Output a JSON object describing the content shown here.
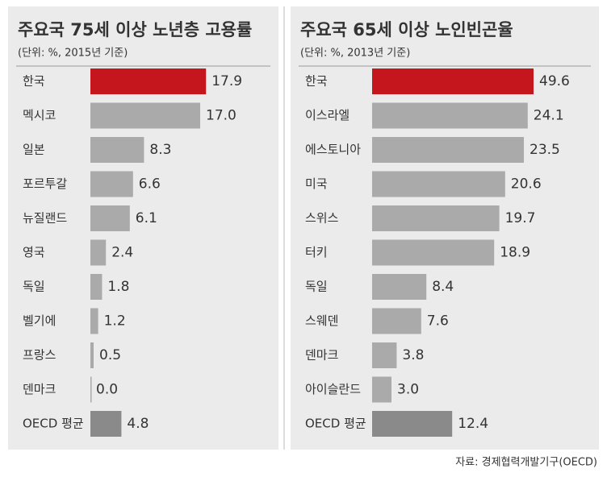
{
  "chart_data": [
    {
      "type": "barh",
      "title": "주요국 75세 이상 노년층 고용률",
      "subtitle": "(단위: %, 2015년 기준)",
      "categories": [
        "한국",
        "멕시코",
        "일본",
        "포르투갈",
        "뉴질랜드",
        "영국",
        "독일",
        "벨기에",
        "프랑스",
        "덴마크",
        "OECD 평균"
      ],
      "values": [
        17.9,
        17.0,
        8.3,
        6.6,
        6.1,
        2.4,
        1.8,
        1.2,
        0.5,
        0.0,
        4.8
      ],
      "value_labels": [
        "17.9",
        "17.0",
        "8.3",
        "6.6",
        "6.1",
        "2.4",
        "1.8",
        "1.2",
        "0.5",
        "0.0",
        "4.8"
      ],
      "colors": [
        "#c4161c",
        "#aaaaaa",
        "#aaaaaa",
        "#aaaaaa",
        "#aaaaaa",
        "#aaaaaa",
        "#aaaaaa",
        "#aaaaaa",
        "#aaaaaa",
        "#aaaaaa",
        "#8a8a8a"
      ],
      "value_label_colors": [
        "#c4161c",
        "#333333",
        "#333333",
        "#333333",
        "#333333",
        "#333333",
        "#333333",
        "#333333",
        "#333333",
        "#333333",
        "#333333"
      ],
      "xlim": [
        0,
        18
      ]
    },
    {
      "type": "barh",
      "title": "주요국 65세 이상 노인빈곤율",
      "subtitle": "(단위: %, 2013년 기준)",
      "categories": [
        "한국",
        "이스라엘",
        "에스토니아",
        "미국",
        "스위스",
        "터키",
        "독일",
        "스웨덴",
        "덴마크",
        "아이슬란드",
        "OECD 평균"
      ],
      "values": [
        49.6,
        24.1,
        23.5,
        20.6,
        19.7,
        18.9,
        8.4,
        7.6,
        3.8,
        3.0,
        12.4
      ],
      "value_labels": [
        "49.6",
        "24.1",
        "23.5",
        "20.6",
        "19.7",
        "18.9",
        "8.4",
        "7.6",
        "3.8",
        "3.0",
        "12.4"
      ],
      "colors": [
        "#c4161c",
        "#aaaaaa",
        "#aaaaaa",
        "#aaaaaa",
        "#aaaaaa",
        "#aaaaaa",
        "#aaaaaa",
        "#aaaaaa",
        "#aaaaaa",
        "#aaaaaa",
        "#8a8a8a"
      ],
      "value_label_colors": [
        "#c4161c",
        "#333333",
        "#333333",
        "#333333",
        "#333333",
        "#333333",
        "#333333",
        "#333333",
        "#333333",
        "#333333",
        "#333333"
      ],
      "xlim": [
        0,
        25
      ]
    }
  ],
  "source": "자료: 경제협력개발기구(OECD)"
}
